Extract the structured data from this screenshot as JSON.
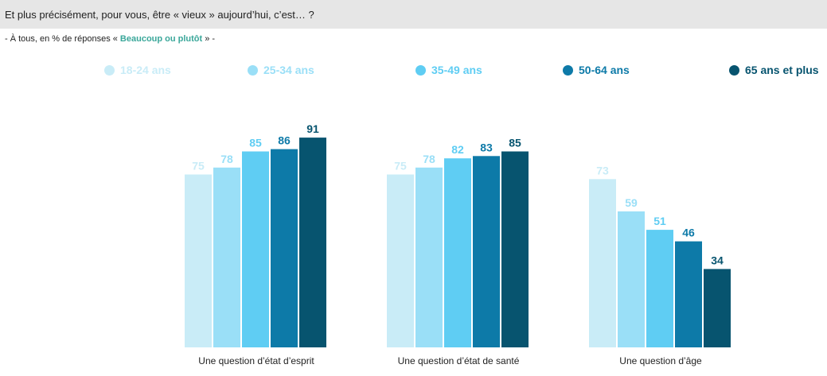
{
  "header": {
    "question": "Et plus précisément, pour vous, être « vieux » aujourd’hui, c’est… ?"
  },
  "subtitle": {
    "prefix": "- À tous, en % de réponses « ",
    "highlight": "Beaucoup ou plutôt",
    "suffix": " » -"
  },
  "colors": {
    "highlight": "#3aa79a",
    "series": [
      "#c9ecf7",
      "#9adff7",
      "#5fcdf3",
      "#0d7aa8",
      "#07546f"
    ],
    "legend_text": [
      "#c9ecf7",
      "#9adff7",
      "#5fcdf3",
      "#0d7aa8",
      "#07546f"
    ]
  },
  "chart_data": {
    "type": "bar",
    "categories": [
      "Une question d’état d’esprit",
      "Une question d’état de santé",
      "Une question d’âge"
    ],
    "series": [
      {
        "name": "18-24 ans",
        "values": [
          75,
          75,
          73
        ]
      },
      {
        "name": "25-34 ans",
        "values": [
          78,
          78,
          59
        ]
      },
      {
        "name": "35-49 ans",
        "values": [
          85,
          82,
          51
        ]
      },
      {
        "name": "50-64 ans",
        "values": [
          86,
          83,
          46
        ]
      },
      {
        "name": "65 ans et plus",
        "values": [
          91,
          85,
          34
        ]
      }
    ],
    "ylim": [
      0,
      100
    ],
    "grid": false,
    "legend": "top"
  }
}
